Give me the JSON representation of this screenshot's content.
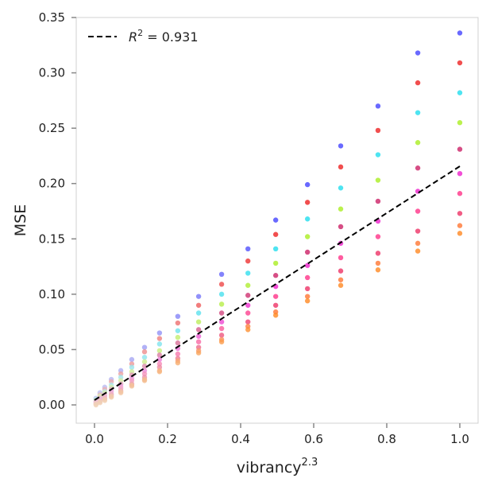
{
  "chart_data": {
    "type": "scatter",
    "title": "",
    "xlabel": "vibrancy",
    "xlabel_superscript": "2.3",
    "ylabel": "MSE",
    "xlim": [
      -0.05,
      1.05
    ],
    "ylim": [
      -0.016,
      0.35
    ],
    "xticks": [
      0.0,
      0.2,
      0.4,
      0.6,
      0.8,
      1.0
    ],
    "xtick_labels": [
      "0.0",
      "0.2",
      "0.4",
      "0.6",
      "0.8",
      "1.0"
    ],
    "yticks": [
      0.0,
      0.05,
      0.1,
      0.15,
      0.2,
      0.25,
      0.3,
      0.35
    ],
    "ytick_labels": [
      "0.00",
      "0.05",
      "0.10",
      "0.15",
      "0.20",
      "0.25",
      "0.30",
      "0.35"
    ],
    "grid": false,
    "legend": {
      "placement": "top-left",
      "entries": [
        {
          "label_prefix": "R",
          "label_exp": "2",
          "label_suffix": " = 0.931",
          "style": "dashed",
          "color": "#000000"
        }
      ]
    },
    "fit_line": {
      "slope": 0.2113,
      "intercept": 0.0043,
      "x_range": [
        0.0,
        1.0
      ],
      "color": "#000000"
    },
    "point_colors_top_to_bottom": [
      "#4444ff",
      "#ee2222",
      "#22ddee",
      "#aaee22",
      "#cc2266",
      "#ee22cc",
      "#ff3388",
      "#ee3366",
      "#ff7733",
      "#ff8822"
    ],
    "columns": [
      {
        "x": 0.004,
        "y": [
          0.006,
          0.005,
          0.004,
          0.003,
          0.002,
          0.001,
          0.0
        ]
      },
      {
        "x": 0.015,
        "y": [
          0.011,
          0.009,
          0.008,
          0.006,
          0.005,
          0.004,
          0.003,
          0.002
        ]
      },
      {
        "x": 0.028,
        "y": [
          0.016,
          0.014,
          0.012,
          0.011,
          0.009,
          0.008,
          0.006,
          0.005,
          0.004
        ]
      },
      {
        "x": 0.046,
        "y": [
          0.023,
          0.021,
          0.018,
          0.016,
          0.014,
          0.012,
          0.01,
          0.009,
          0.008,
          0.007
        ]
      },
      {
        "x": 0.072,
        "y": [
          0.031,
          0.028,
          0.025,
          0.022,
          0.019,
          0.017,
          0.015,
          0.013,
          0.012,
          0.011
        ]
      },
      {
        "x": 0.102,
        "y": [
          0.041,
          0.037,
          0.034,
          0.03,
          0.027,
          0.024,
          0.022,
          0.019,
          0.018,
          0.017
        ]
      },
      {
        "x": 0.137,
        "y": [
          0.052,
          0.048,
          0.043,
          0.039,
          0.035,
          0.031,
          0.028,
          0.025,
          0.023,
          0.022
        ]
      },
      {
        "x": 0.178,
        "y": [
          0.065,
          0.06,
          0.055,
          0.049,
          0.045,
          0.041,
          0.037,
          0.034,
          0.031,
          0.03
        ]
      },
      {
        "x": 0.228,
        "y": [
          0.08,
          0.074,
          0.067,
          0.061,
          0.056,
          0.051,
          0.046,
          0.042,
          0.04,
          0.038
        ]
      },
      {
        "x": 0.285,
        "y": [
          0.098,
          0.09,
          0.083,
          0.075,
          0.068,
          0.062,
          0.057,
          0.052,
          0.049,
          0.047
        ]
      },
      {
        "x": 0.348,
        "y": [
          0.118,
          0.109,
          0.1,
          0.091,
          0.083,
          0.075,
          0.069,
          0.063,
          0.059,
          0.057
        ]
      },
      {
        "x": 0.42,
        "y": [
          0.141,
          0.13,
          0.119,
          0.108,
          0.099,
          0.09,
          0.083,
          0.075,
          0.071,
          0.068
        ]
      },
      {
        "x": 0.496,
        "y": [
          0.167,
          0.154,
          0.141,
          0.128,
          0.117,
          0.107,
          0.098,
          0.09,
          0.084,
          0.081
        ]
      },
      {
        "x": 0.583,
        "y": [
          0.199,
          0.183,
          0.168,
          0.152,
          0.138,
          0.126,
          0.115,
          0.105,
          0.098,
          0.094
        ]
      },
      {
        "x": 0.674,
        "y": [
          0.234,
          0.215,
          0.196,
          0.177,
          0.161,
          0.146,
          0.133,
          0.121,
          0.113,
          0.108
        ]
      },
      {
        "x": 0.776,
        "y": [
          0.27,
          0.248,
          0.226,
          0.203,
          0.184,
          0.166,
          0.152,
          0.137,
          0.128,
          0.122
        ]
      },
      {
        "x": 0.885,
        "y": [
          0.318,
          0.291,
          0.264,
          0.237,
          0.214,
          0.193,
          0.175,
          0.157,
          0.146,
          0.139
        ]
      },
      {
        "x": 1.0,
        "y": [
          0.336,
          0.309,
          0.282,
          0.255,
          0.231,
          0.209,
          0.191,
          0.173,
          0.162,
          0.155
        ]
      }
    ]
  }
}
